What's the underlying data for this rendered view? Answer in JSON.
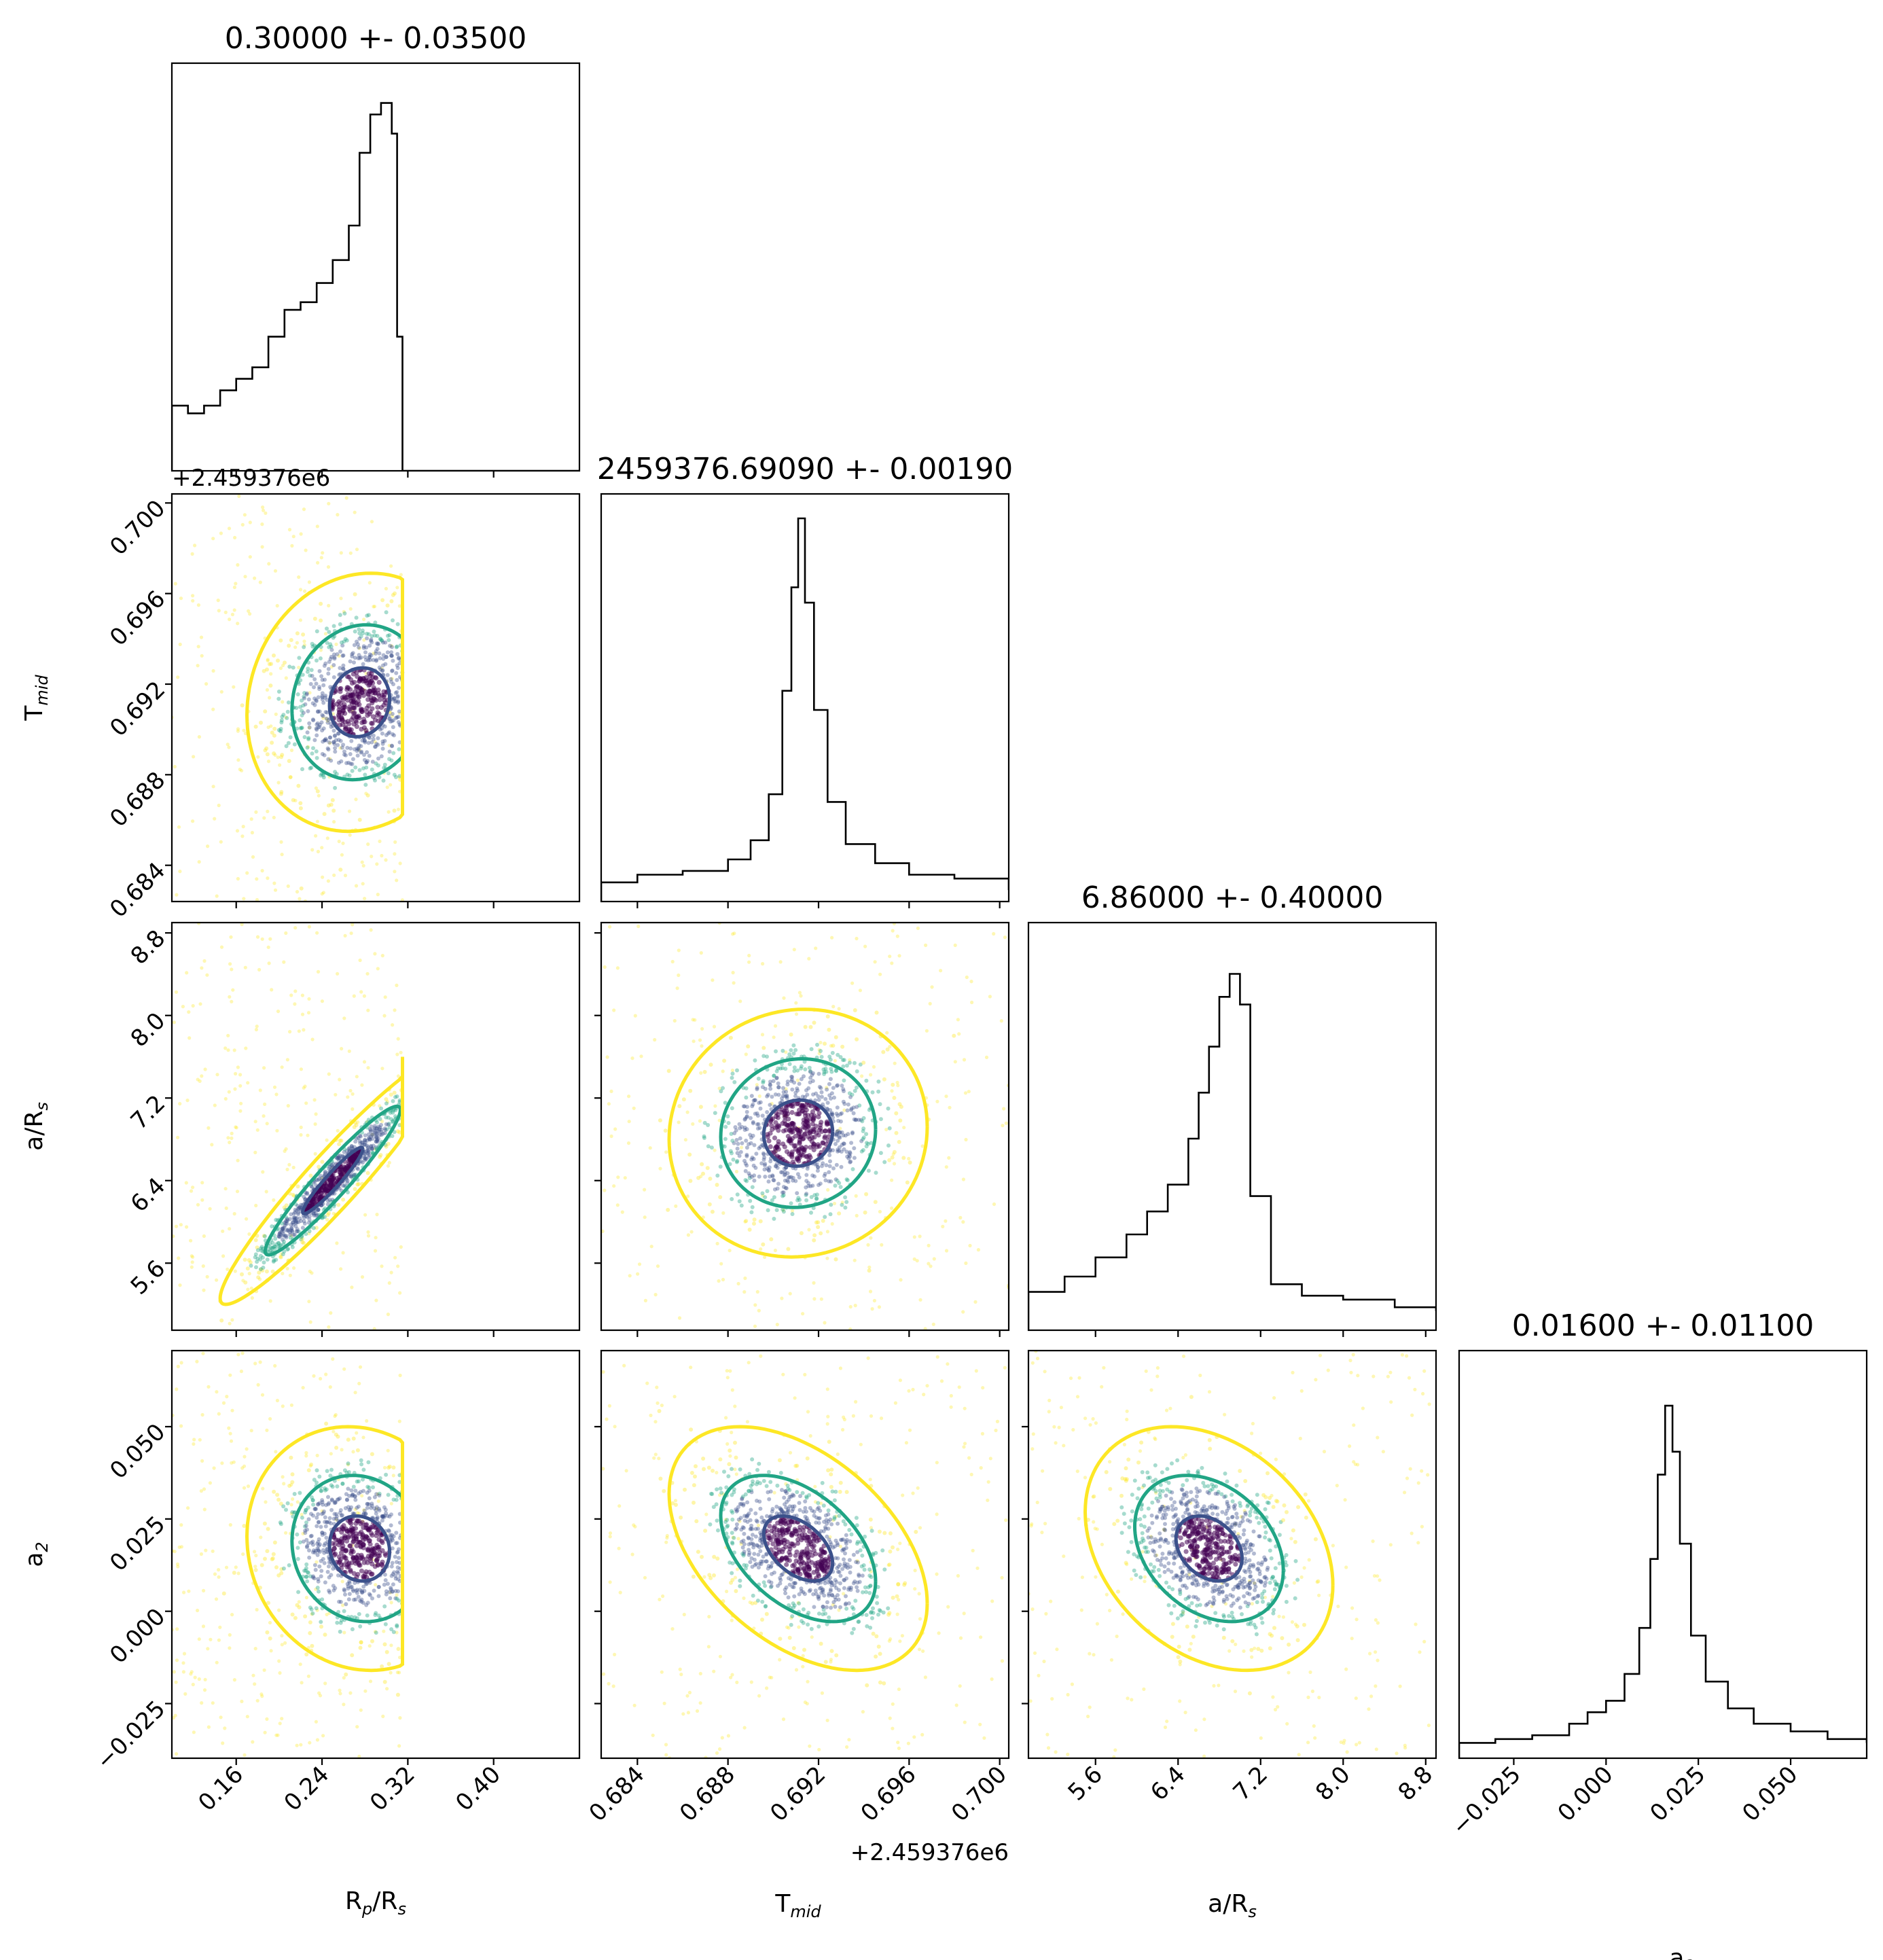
{
  "chart_data": {
    "type": "scatter",
    "plot_kind": "corner plot",
    "parameters": [
      {
        "key": "rp",
        "label_main": "R",
        "label_sub": "p",
        "label_mid": "/R",
        "label_sub2": "s",
        "range": [
          0.1,
          0.48
        ]
      },
      {
        "key": "tmid",
        "label_main": "T",
        "label_sub": "mid",
        "range": [
          0.6824,
          0.7004
        ],
        "offset_text": "+2.459376e6"
      },
      {
        "key": "ars",
        "label_main": "a/R",
        "label_sub": "s",
        "range": [
          4.95,
          8.9
        ]
      },
      {
        "key": "a2",
        "label_main": "a",
        "label_sub": "2",
        "range": [
          -0.0398,
          0.0706
        ]
      }
    ],
    "titles": [
      "0.30000 +- 0.03500",
      "2459376.69090 +- 0.00190",
      "6.86000 +- 0.40000",
      "0.01600 +- 0.01100"
    ],
    "ticks": {
      "rp": [
        "0.16",
        "0.24",
        "0.32",
        "0.40"
      ],
      "tmid": [
        "0.684",
        "0.688",
        "0.692",
        "0.696",
        "0.700"
      ],
      "ars": [
        "5.6",
        "6.4",
        "7.2",
        "8.0",
        "8.8"
      ],
      "a2": [
        "−0.025",
        "0.000",
        "0.025",
        "0.050"
      ]
    },
    "tick_values": {
      "rp": [
        0.16,
        0.24,
        0.32,
        0.4
      ],
      "tmid": [
        0.684,
        0.688,
        0.692,
        0.696,
        0.7
      ],
      "ars": [
        5.6,
        6.4,
        7.2,
        8.0,
        8.8
      ],
      "a2": [
        -0.025,
        0.0,
        0.025,
        0.05
      ]
    },
    "histograms": {
      "rp": {
        "x": [
          0.1,
          0.115,
          0.13,
          0.145,
          0.16,
          0.175,
          0.19,
          0.205,
          0.22,
          0.235,
          0.25,
          0.265,
          0.275,
          0.285,
          0.295,
          0.305,
          0.31,
          0.315
        ],
        "y": [
          0.17,
          0.15,
          0.17,
          0.21,
          0.24,
          0.27,
          0.35,
          0.42,
          0.44,
          0.49,
          0.55,
          0.64,
          0.83,
          0.93,
          0.96,
          0.88,
          0.35,
          0.0
        ]
      },
      "tmid": {
        "x": [
          0.6824,
          0.684,
          0.686,
          0.688,
          0.689,
          0.6898,
          0.6904,
          0.6908,
          0.6911,
          0.6914,
          0.6918,
          0.6924,
          0.6932,
          0.6945,
          0.696,
          0.698,
          0.7004
        ],
        "y": [
          0.05,
          0.07,
          0.08,
          0.11,
          0.16,
          0.28,
          0.55,
          0.82,
          1.0,
          0.78,
          0.5,
          0.26,
          0.15,
          0.1,
          0.07,
          0.06,
          0.03
        ]
      },
      "ars": {
        "x": [
          4.95,
          5.3,
          5.6,
          5.9,
          6.1,
          6.3,
          6.5,
          6.6,
          6.7,
          6.8,
          6.9,
          7.0,
          7.1,
          7.3,
          7.6,
          8.0,
          8.5,
          8.9
        ],
        "y": [
          0.1,
          0.14,
          0.19,
          0.25,
          0.31,
          0.38,
          0.5,
          0.62,
          0.74,
          0.87,
          0.93,
          0.85,
          0.35,
          0.12,
          0.09,
          0.08,
          0.06,
          0.05
        ]
      },
      "a2": {
        "x": [
          -0.0398,
          -0.03,
          -0.02,
          -0.01,
          -0.005,
          0.0,
          0.005,
          0.009,
          0.012,
          0.014,
          0.016,
          0.018,
          0.02,
          0.023,
          0.027,
          0.033,
          0.04,
          0.05,
          0.06,
          0.0706
        ],
        "y": [
          0.04,
          0.05,
          0.06,
          0.09,
          0.12,
          0.15,
          0.22,
          0.34,
          0.52,
          0.74,
          0.92,
          0.8,
          0.56,
          0.32,
          0.2,
          0.13,
          0.09,
          0.07,
          0.05,
          0.04
        ]
      }
    },
    "pairs": [
      {
        "x": "rp",
        "y": "tmid",
        "center": [
          0.275,
          0.6912
        ],
        "spread": [
          0.035,
          0.0019
        ],
        "rho": 0.1,
        "x_cap": 0.315
      },
      {
        "x": "rp",
        "y": "ars",
        "center": [
          0.25,
          6.4
        ],
        "spread": [
          0.035,
          0.4
        ],
        "rho": 0.95,
        "x_cap": 0.315
      },
      {
        "x": "tmid",
        "y": "ars",
        "center": [
          0.6911,
          6.86
        ],
        "spread": [
          0.0019,
          0.4
        ],
        "rho": 0.05
      },
      {
        "x": "rp",
        "y": "a2",
        "center": [
          0.275,
          0.017
        ],
        "spread": [
          0.035,
          0.011
        ],
        "rho": -0.1,
        "x_cap": 0.315
      },
      {
        "x": "tmid",
        "y": "a2",
        "center": [
          0.6911,
          0.017
        ],
        "spread": [
          0.0019,
          0.011
        ],
        "rho": -0.45
      },
      {
        "x": "ars",
        "y": "a2",
        "center": [
          6.7,
          0.017
        ],
        "spread": [
          0.4,
          0.011
        ],
        "rho": -0.3
      }
    ],
    "contour_levels": [
      "0.5-sigma",
      "1-sigma",
      "2-sigma"
    ],
    "colors": {
      "level1": "#3b518b",
      "level2": "#21a585",
      "level3": "#fde725",
      "points": [
        "#440154",
        "#3b518b",
        "#21a585",
        "#fde725"
      ],
      "hist": "#000000"
    }
  }
}
